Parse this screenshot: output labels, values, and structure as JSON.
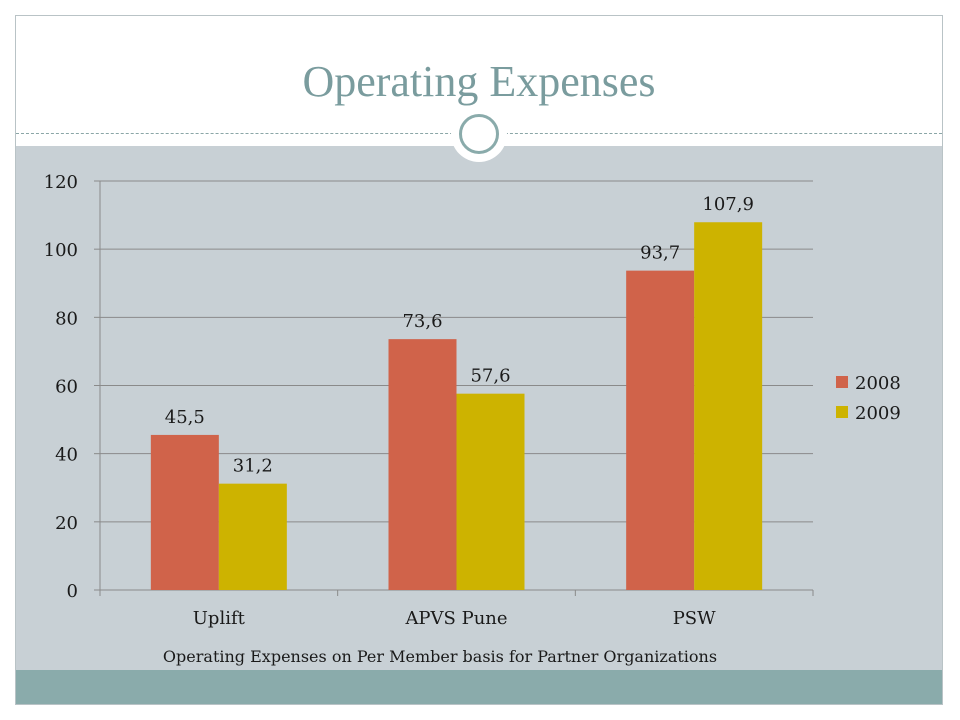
{
  "slide": {
    "title": "Operating Expenses",
    "caption": "Operating Expenses on Per Member basis for Partner Organizations"
  },
  "colors": {
    "series_2008": "#d0634a",
    "series_2009": "#cdb300",
    "grid": "#8a8a8a",
    "title": "#7a9c9e",
    "panel": "#c8d0d5",
    "footer": "#8aabab"
  },
  "chart_data": {
    "type": "bar",
    "categories": [
      "Uplift",
      "APVS Pune",
      "PSW"
    ],
    "series": [
      {
        "name": "2008",
        "values": [
          45.5,
          73.6,
          93.7
        ],
        "labels": [
          "45,5",
          "73,6",
          "93,7"
        ]
      },
      {
        "name": "2009",
        "values": [
          31.2,
          57.6,
          107.9
        ],
        "labels": [
          "31,2",
          "57,6",
          "107,9"
        ]
      }
    ],
    "title": "",
    "xlabel": "",
    "ylabel": "",
    "ylim": [
      0,
      120
    ],
    "yticks": [
      0,
      20,
      40,
      60,
      80,
      100,
      120
    ],
    "grid": true,
    "legend": "right"
  }
}
